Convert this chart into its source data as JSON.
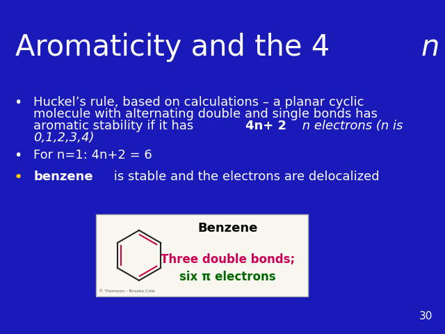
{
  "background_color": "#1a1ab8",
  "title_color": "#ffffff",
  "title_fontsize": 30,
  "bullet_color": "#ffffff",
  "bullet_fontsize": 13,
  "bullet1_line1": "Huckel’s rule, based on calculations – a planar cyclic",
  "bullet1_line2": "molecule with alternating double and single bonds has",
  "bullet1_line3_pre": "aromatic stability if it has ",
  "bullet1_line3_bold": "4n+ 2",
  "bullet1_line3_post": " n electrons (n is",
  "bullet1_line4": "0,1,2,3,4)",
  "bullet2": "For n=1: 4n+2 = 6",
  "bullet3_bold": "benzene",
  "bullet3_normal": " is stable and the electrons are delocalized",
  "box_facecolor": "#f8f8f0",
  "box_edgecolor": "#aaaaaa",
  "box_title": "Benzene",
  "box_title_color": "#000000",
  "box_text1": "Three double bonds;",
  "box_text1_color": "#cc0055",
  "box_text2": "six π electrons",
  "box_text2_color": "#006600",
  "page_number": "30",
  "page_number_color": "#ffffff",
  "bullet_yellow": "#ffcc00",
  "hex_edge_color": "#222222",
  "double_bond_color": "#cc0044"
}
